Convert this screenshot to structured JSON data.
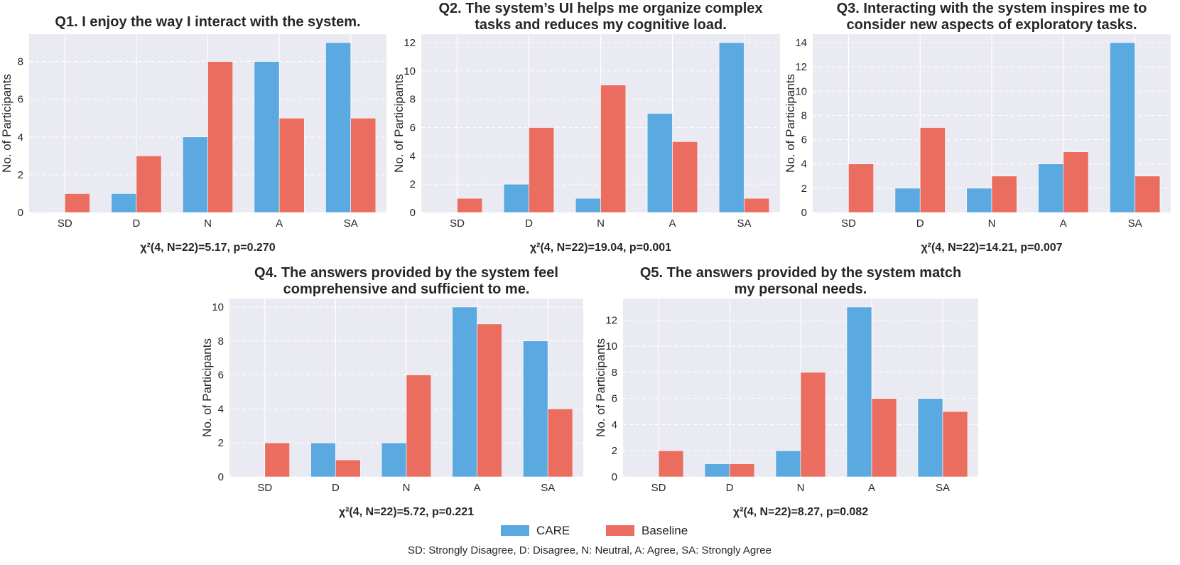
{
  "figure": {
    "legend": [
      {
        "label": "CARE",
        "color": "#5aa9e0"
      },
      {
        "label": "Baseline",
        "color": "#ea6d60"
      }
    ],
    "footnote": "SD: Strongly Disagree, D: Disagree, N: Neutral, A: Agree, SA: Strongly Agree",
    "colors": {
      "panel_bg": "#eaeaf2",
      "grid": "#ffffff",
      "text": "#262626"
    }
  },
  "chart_data": [
    {
      "type": "bar",
      "title": [
        "Q1. I enjoy the way I interact with the system."
      ],
      "xlabel": "χ²(4, N=22)=5.17, p=0.270",
      "ylabel": "No. of Participants",
      "categories": [
        "SD",
        "D",
        "N",
        "A",
        "SA"
      ],
      "series": [
        {
          "name": "CARE",
          "values": [
            0,
            1,
            4,
            8,
            9
          ]
        },
        {
          "name": "Baseline",
          "values": [
            1,
            3,
            8,
            5,
            5
          ]
        }
      ],
      "ylim": [
        0,
        9.45
      ],
      "yticks": [
        0,
        2,
        4,
        6,
        8
      ],
      "grid": true
    },
    {
      "type": "bar",
      "title": [
        "Q2. The system’s UI helps me organize complex",
        "tasks and reduces my cognitive load."
      ],
      "xlabel": "χ²(4, N=22)=19.04, p=0.001",
      "ylabel": "No. of Participants",
      "categories": [
        "SD",
        "D",
        "N",
        "A",
        "SA"
      ],
      "series": [
        {
          "name": "CARE",
          "values": [
            0,
            2,
            1,
            7,
            12
          ]
        },
        {
          "name": "Baseline",
          "values": [
            1,
            6,
            9,
            5,
            1
          ]
        }
      ],
      "ylim": [
        0,
        12.6
      ],
      "yticks": [
        0,
        2,
        4,
        6,
        8,
        10,
        12
      ],
      "grid": true
    },
    {
      "type": "bar",
      "title": [
        "Q3. Interacting with the system inspires me to",
        "consider new aspects of exploratory tasks."
      ],
      "xlabel": "χ²(4, N=22)=14.21, p=0.007",
      "ylabel": "No. of Participants",
      "categories": [
        "SD",
        "D",
        "N",
        "A",
        "SA"
      ],
      "series": [
        {
          "name": "CARE",
          "values": [
            0,
            2,
            2,
            4,
            14
          ]
        },
        {
          "name": "Baseline",
          "values": [
            4,
            7,
            3,
            5,
            3
          ]
        }
      ],
      "ylim": [
        0,
        14.7
      ],
      "yticks": [
        0,
        2,
        4,
        6,
        8,
        10,
        12,
        14
      ],
      "grid": true
    },
    {
      "type": "bar",
      "title": [
        "Q4. The answers provided by the system feel",
        "comprehensive and sufficient to me."
      ],
      "xlabel": "χ²(4, N=22)=5.72, p=0.221",
      "ylabel": "No. of Participants",
      "categories": [
        "SD",
        "D",
        "N",
        "A",
        "SA"
      ],
      "series": [
        {
          "name": "CARE",
          "values": [
            0,
            2,
            2,
            10,
            8
          ]
        },
        {
          "name": "Baseline",
          "values": [
            2,
            1,
            6,
            9,
            4
          ]
        }
      ],
      "ylim": [
        0,
        10.5
      ],
      "yticks": [
        0,
        2,
        4,
        6,
        8,
        10
      ],
      "grid": true
    },
    {
      "type": "bar",
      "title": [
        "Q5. The answers provided by the system match",
        "my personal needs."
      ],
      "xlabel": "χ²(4, N=22)=8.27, p=0.082",
      "ylabel": "No. of Participants",
      "categories": [
        "SD",
        "D",
        "N",
        "A",
        "SA"
      ],
      "series": [
        {
          "name": "CARE",
          "values": [
            0,
            1,
            2,
            13,
            6
          ]
        },
        {
          "name": "Baseline",
          "values": [
            2,
            1,
            8,
            6,
            5
          ]
        }
      ],
      "ylim": [
        0,
        13.65
      ],
      "yticks": [
        0,
        2,
        4,
        6,
        8,
        10,
        12
      ],
      "grid": true
    }
  ]
}
